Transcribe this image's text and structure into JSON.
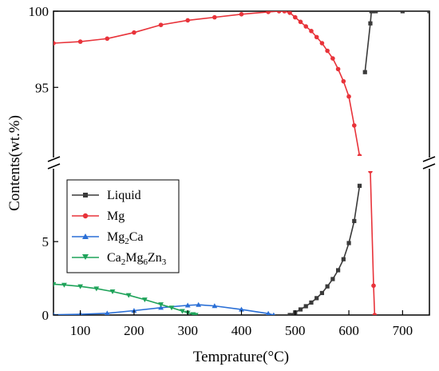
{
  "chart_data": {
    "type": "line",
    "xlabel": "Temprature(°C)",
    "ylabel": "Contents(wt.%)",
    "xlim": [
      50,
      750
    ],
    "x_ticks": [
      "100",
      "200",
      "300",
      "400",
      "500",
      "600",
      "700"
    ],
    "y_break": {
      "upper_range": [
        90.5,
        100
      ],
      "lower_range": [
        0,
        9.8
      ],
      "upper_ticks": [
        "95",
        "100"
      ],
      "lower_ticks": [
        "0",
        "5"
      ]
    },
    "legend_position": "center-left",
    "series": [
      {
        "name": "Liquid",
        "color": "#3a3a3a",
        "marker": "square",
        "x": [
          490,
          500,
          510,
          520,
          530,
          540,
          550,
          560,
          570,
          580,
          590,
          600,
          610,
          620,
          630,
          640,
          642,
          645,
          650,
          700,
          750
        ],
        "y": [
          0,
          0.18,
          0.38,
          0.6,
          0.85,
          1.15,
          1.5,
          1.95,
          2.45,
          3.05,
          3.8,
          4.9,
          6.4,
          8.8,
          96,
          99.2,
          100,
          100,
          100,
          100,
          100
        ]
      },
      {
        "name": "Mg",
        "color": "#e8333a",
        "marker": "circle",
        "x": [
          50,
          100,
          150,
          200,
          250,
          300,
          350,
          400,
          450,
          470,
          480,
          490,
          500,
          510,
          520,
          530,
          540,
          550,
          560,
          570,
          580,
          590,
          600,
          610,
          620,
          640,
          646,
          648
        ],
        "y": [
          97.9,
          98.0,
          98.2,
          98.6,
          99.1,
          99.4,
          99.6,
          99.8,
          99.95,
          100,
          100,
          99.9,
          99.6,
          99.3,
          99.0,
          98.7,
          98.3,
          97.9,
          97.4,
          96.9,
          96.2,
          95.4,
          94.4,
          92.5,
          90.5,
          9.8,
          2,
          0
        ]
      },
      {
        "name": "Mg2Ca",
        "label_main": "Mg",
        "label_sub1": "2",
        "label_rest": "Ca",
        "color": "#2a6fd6",
        "marker": "triangle-up",
        "x": [
          50,
          100,
          150,
          200,
          250,
          300,
          320,
          350,
          400,
          450,
          460
        ],
        "y": [
          0.02,
          0.05,
          0.12,
          0.3,
          0.5,
          0.66,
          0.7,
          0.62,
          0.38,
          0.1,
          0
        ]
      },
      {
        "name": "Ca2Mg6Zn3",
        "label_main": "Ca",
        "label_sub1": "2",
        "label_mid": "Mg",
        "label_sub2": "6",
        "label_mid2": "Zn",
        "label_sub3": "3",
        "color": "#1fa35a",
        "marker": "triangle-down",
        "x": [
          50,
          70,
          100,
          130,
          160,
          190,
          220,
          250,
          270,
          290,
          300,
          310,
          315
        ],
        "y": [
          2.1,
          2.05,
          1.95,
          1.8,
          1.6,
          1.35,
          1.05,
          0.72,
          0.5,
          0.27,
          0.15,
          0.05,
          0
        ]
      }
    ]
  }
}
